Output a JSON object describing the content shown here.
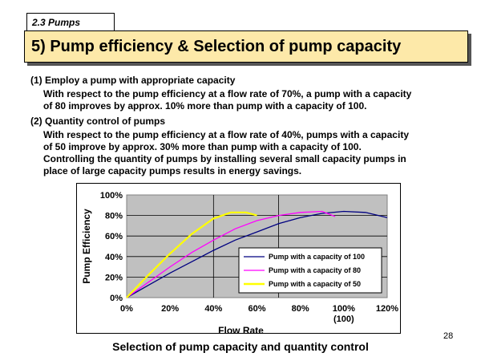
{
  "section": "2.3  Pumps",
  "title": "5) Pump efficiency & Selection of pump capacity",
  "points": [
    {
      "heading": "(1) Employ a pump with appropriate capacity",
      "lines": [
        "With respect to the pump efficiency at a flow rate of 70%, a pump with a capacity",
        "of 80 improves by approx. 10% more than pump with a capacity of 100."
      ]
    },
    {
      "heading": "(2) Quantity control of pumps",
      "lines": [
        "With respect to the pump efficiency at a flow rate of 40%,  pumps with a capacity",
        "of 50 improve by approx. 30% more than pump with a capacity of 100.",
        "Controlling the quantity of pumps by installing several small capacity pumps in",
        "place of large capacity pumps results in energy savings."
      ]
    }
  ],
  "caption": "Selection of pump capacity and quantity control",
  "page_number": "28",
  "chart_data": {
    "type": "line",
    "xlabel": "Flow Rate",
    "ylabel": "Pump Efficiency",
    "x_ticks": [
      "0%",
      "20%",
      "40%",
      "60%",
      "80%",
      "100%",
      "120%"
    ],
    "x_tick_values": [
      0,
      20,
      40,
      60,
      80,
      100,
      120
    ],
    "x_extra_label": "(100)",
    "y_ticks": [
      "0%",
      "20%",
      "40%",
      "60%",
      "80%",
      "100%"
    ],
    "y_tick_values": [
      0,
      20,
      40,
      60,
      80,
      100
    ],
    "xlim": [
      0,
      120
    ],
    "ylim": [
      0,
      100
    ],
    "plot_background": "#c0c0c0",
    "grid": true,
    "vertical_reference_lines": [
      40,
      70
    ],
    "legend_position": "bottom-right",
    "series": [
      {
        "name": "Pump with a capacity of 100",
        "color": "#000080",
        "x": [
          0,
          10,
          20,
          30,
          40,
          50,
          60,
          70,
          80,
          90,
          100,
          110,
          120
        ],
        "y": [
          0,
          12,
          24,
          35,
          46,
          56,
          64,
          72,
          78,
          82,
          84,
          83,
          78
        ]
      },
      {
        "name": "Pump with a capacity of 80",
        "color": "#ff00ff",
        "x": [
          0,
          10,
          20,
          30,
          40,
          50,
          60,
          70,
          80,
          90,
          96
        ],
        "y": [
          0,
          15,
          30,
          44,
          56,
          67,
          75,
          80,
          83,
          84,
          79
        ]
      },
      {
        "name": "Pump with a capacity of 50",
        "color": "#ffff00",
        "x": [
          0,
          10,
          20,
          30,
          40,
          48,
          55,
          60
        ],
        "y": [
          0,
          22,
          43,
          62,
          77,
          83,
          83,
          80
        ]
      }
    ]
  }
}
